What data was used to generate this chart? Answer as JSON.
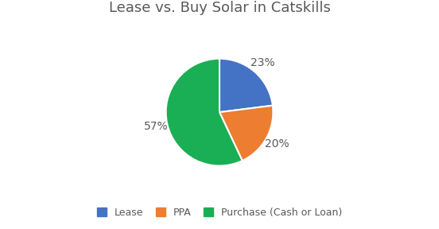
{
  "title": "Lease vs. Buy Solar in Catskills",
  "labels": [
    "Lease",
    "PPA",
    "Purchase (Cash or Loan)"
  ],
  "values": [
    23,
    20,
    57
  ],
  "colors": [
    "#4472C4",
    "#ED7D31",
    "#1AAF54"
  ],
  "title_color": "#595959",
  "title_fontsize": 13,
  "legend_fontsize": 9,
  "pct_fontsize": 10,
  "background_color": "#ffffff",
  "startangle": 90,
  "pct_color": "#595959"
}
